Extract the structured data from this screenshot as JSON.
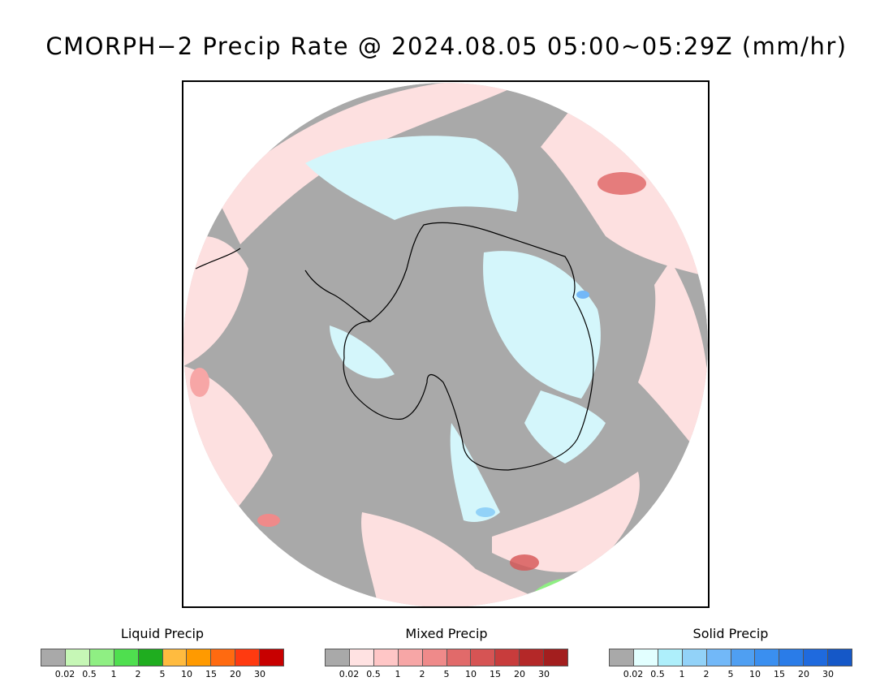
{
  "title": "CMORPH−2 Precip Rate @ 2024.08.05 05:00~05:29Z (mm/hr)",
  "colors": {
    "background": "#ffffff",
    "no_precip_gray": "#a9a9a9",
    "mixed_light": "#fde0e0",
    "solid_light": "#d4f6fb",
    "coast": "#000000"
  },
  "legends": [
    {
      "title": "Liquid Precip",
      "ticks": [
        "0.02",
        "0.5",
        "1",
        "2",
        "5",
        "10",
        "15",
        "20",
        "30"
      ],
      "colors": [
        "#a9a9a9",
        "#c6f7b6",
        "#8fef83",
        "#4fdf4f",
        "#1fad1f",
        "#ffbb3f",
        "#ff9a00",
        "#ff6a10",
        "#ff3a10",
        "#c80000"
      ]
    },
    {
      "title": "Mixed Precip",
      "ticks": [
        "0.02",
        "0.5",
        "1",
        "2",
        "5",
        "10",
        "15",
        "20",
        "30"
      ],
      "colors": [
        "#a9a9a9",
        "#ffe2e2",
        "#ffc6c6",
        "#f7a6a6",
        "#ef8a8a",
        "#e16a6a",
        "#d65454",
        "#c83c3c",
        "#b42828",
        "#a31e1e"
      ]
    },
    {
      "title": "Solid Precip",
      "ticks": [
        "0.02",
        "0.5",
        "1",
        "2",
        "5",
        "10",
        "15",
        "20",
        "30"
      ],
      "colors": [
        "#a9a9a9",
        "#e2ffff",
        "#aeeffb",
        "#92d2f8",
        "#72b8f8",
        "#4f9ff2",
        "#3a8ff0",
        "#2a7ce8",
        "#1f6ade",
        "#1558c8"
      ]
    }
  ]
}
